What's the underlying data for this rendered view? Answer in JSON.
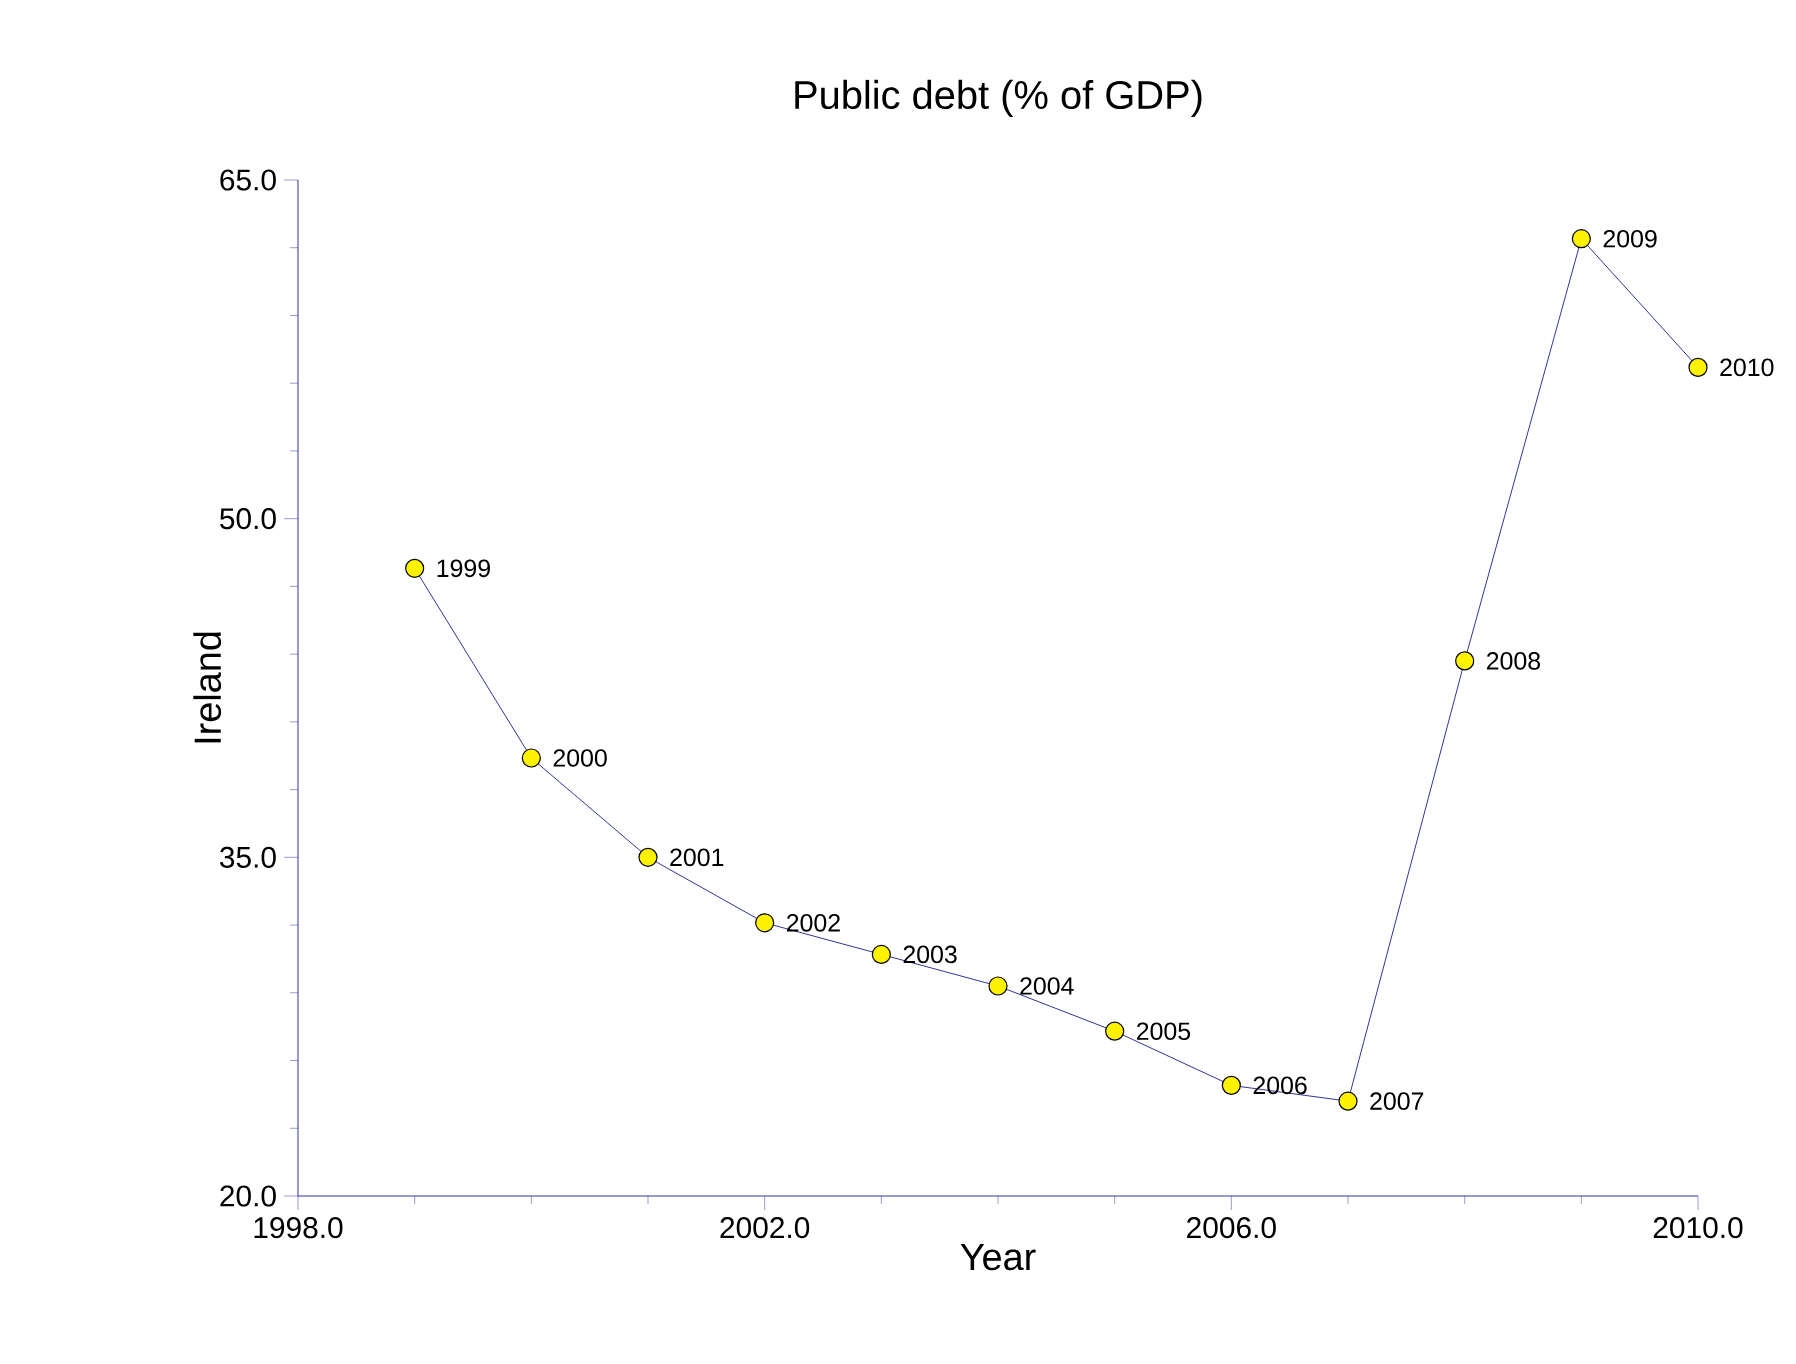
{
  "chart_data": {
    "type": "line",
    "title": "Public debt (% of GDP)",
    "xlabel": "Year",
    "ylabel": "Ireland",
    "x": [
      1999,
      2000,
      2001,
      2002,
      2003,
      2004,
      2005,
      2006,
      2007,
      2008,
      2009,
      2010
    ],
    "series": [
      {
        "color": "#000080",
        "values": [
          47.8,
          39.4,
          35.0,
          32.1,
          30.7,
          29.3,
          27.3,
          24.9,
          24.2,
          43.7,
          62.4,
          56.7
        ]
      }
    ],
    "marker": "circle",
    "xlim": [
      1998,
      2010
    ],
    "ylim": [
      20,
      65
    ],
    "xticks": [
      {
        "value": 1998,
        "label": "1998.0"
      },
      {
        "value": 2002,
        "label": "2002.0"
      },
      {
        "value": 2006,
        "label": "2006.0"
      },
      {
        "value": 2010,
        "label": "2010.0"
      }
    ],
    "yticks": [
      {
        "value": 20,
        "label": "20.0"
      },
      {
        "value": 35,
        "label": "35.0"
      },
      {
        "value": 50,
        "label": "50.0"
      },
      {
        "value": 65,
        "label": "65.0"
      }
    ],
    "grid": false,
    "annotations": [
      {
        "text": "1999",
        "x": 1999,
        "y": 47.8
      },
      {
        "text": "2000",
        "x": 2000,
        "y": 39.4
      },
      {
        "text": "2001",
        "x": 2001,
        "y": 35.0
      },
      {
        "text": "2002",
        "x": 2002,
        "y": 32.1
      },
      {
        "text": "2003",
        "x": 2003,
        "y": 30.7
      },
      {
        "text": "2004",
        "x": 2004,
        "y": 29.3
      },
      {
        "text": "2005",
        "x": 2005,
        "y": 27.3
      },
      {
        "text": "2006",
        "x": 2006,
        "y": 24.9
      },
      {
        "text": "2007",
        "x": 2007,
        "y": 24.2
      },
      {
        "text": "2008",
        "x": 2008,
        "y": 43.7
      },
      {
        "text": "2009",
        "x": 2009,
        "y": 62.4
      },
      {
        "text": "2010",
        "x": 2010,
        "y": 56.7
      }
    ]
  }
}
